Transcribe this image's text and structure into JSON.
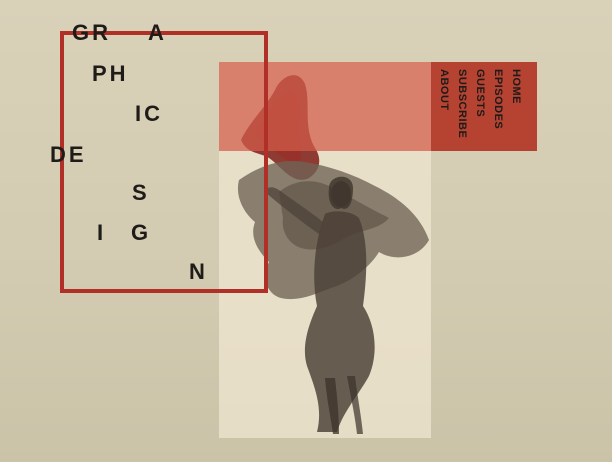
{
  "page": {
    "title_lines": [
      "GR",
      "A",
      "PH",
      "IC",
      "DE",
      "S",
      "I",
      "G",
      "N"
    ]
  },
  "nav": {
    "items": [
      {
        "label": "HOME"
      },
      {
        "label": "EPISODES"
      },
      {
        "label": "GUESTS"
      },
      {
        "label": "SUBSCRIBE"
      },
      {
        "label": "ABOUT"
      }
    ]
  },
  "colors": {
    "background": "#d9d1b8",
    "photo_panel": "#e8dfc8",
    "frame_red": "#b02f26",
    "band_red": "#d35c4a",
    "nav_red": "#b64232",
    "text_dark": "#1e1b18"
  },
  "hero": {
    "image": "figure-with-flowing-fabric"
  }
}
